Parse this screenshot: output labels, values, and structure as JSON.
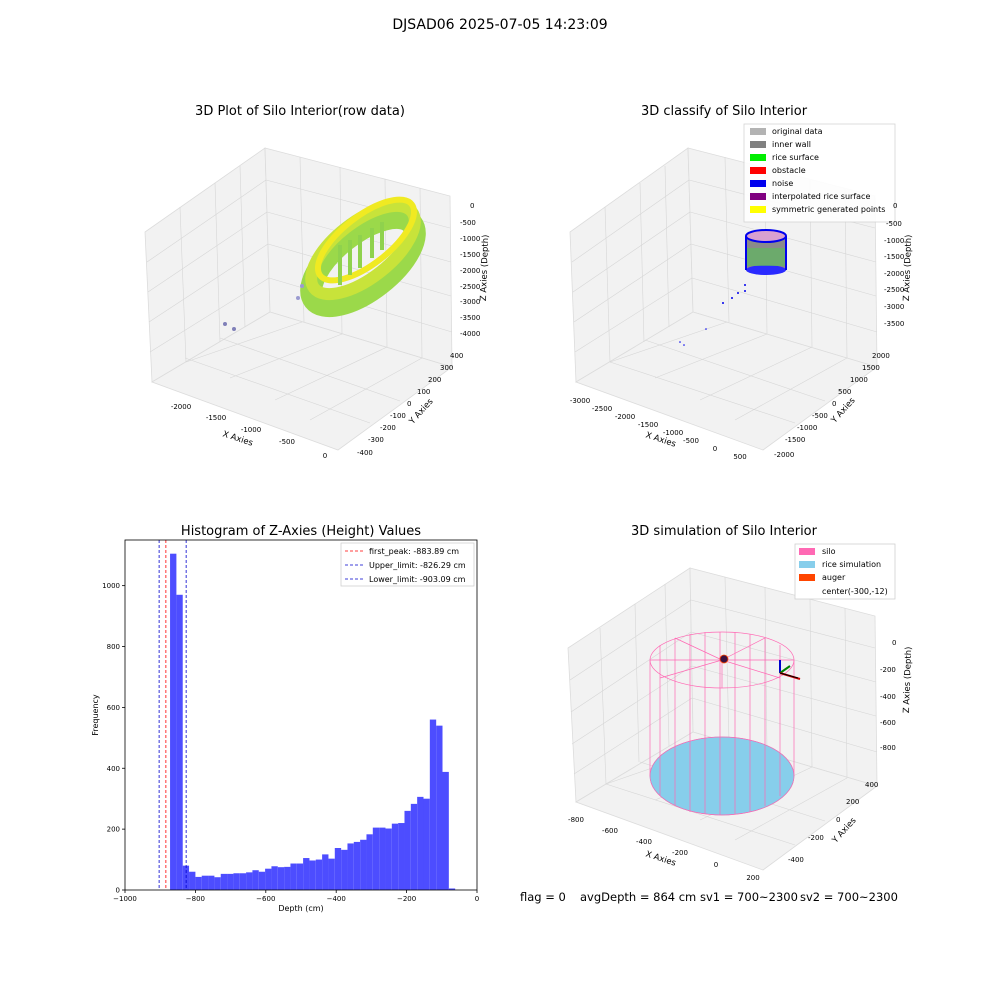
{
  "suptitle": "DJSAD06 2025-07-05 14:23:09",
  "panels": {
    "raw": {
      "title": "3D Plot of Silo Interior(row data)",
      "xlabel": "X Axies",
      "ylabel": "Y Axies",
      "zlabel": "Z Axies (Depth)",
      "xticks": [
        "-2000",
        "-1500",
        "-1000",
        "-500",
        "0"
      ],
      "yticks": [
        "400",
        "300",
        "200",
        "100",
        "0",
        "-100",
        "-200",
        "-300",
        "-400"
      ],
      "zticks": [
        "0",
        "-500",
        "-1000",
        "-1500",
        "-2000",
        "-2500",
        "-3000",
        "-3500",
        "-4000"
      ]
    },
    "classify": {
      "title": "3D classify of Silo Interior",
      "xlabel": "X Axies",
      "ylabel": "Y Axies",
      "zlabel": "Z Axies (Depth)",
      "xticks": [
        "-3000",
        "-2500",
        "-2000",
        "-1500",
        "-1000",
        "-500",
        "0",
        "500"
      ],
      "yticks": [
        "2000",
        "1500",
        "1000",
        "500",
        "0",
        "-500",
        "-1000",
        "-1500",
        "-2000"
      ],
      "zticks": [
        "0",
        "-500",
        "-1000",
        "-1500",
        "-2000",
        "-2500",
        "-3000",
        "-3500"
      ],
      "legend": [
        {
          "label": "original data",
          "color": "#b3b3b3"
        },
        {
          "label": "inner wall",
          "color": "#808080"
        },
        {
          "label": "rice surface",
          "color": "#00ee00"
        },
        {
          "label": "obstacle",
          "color": "#ff0000"
        },
        {
          "label": "noise",
          "color": "#0000ee"
        },
        {
          "label": "interpolated rice surface",
          "color": "#800080"
        },
        {
          "label": "symmetric generated points",
          "color": "#ffff00"
        }
      ]
    },
    "simulation": {
      "title": "3D simulation of Silo Interior",
      "xlabel": "X Axies",
      "ylabel": "Y Axies",
      "zlabel": "Z Axies (Depth)",
      "xticks": [
        "-800",
        "-600",
        "-400",
        "-200",
        "0",
        "200"
      ],
      "yticks": [
        "400",
        "200",
        "0",
        "-200",
        "-400"
      ],
      "zticks": [
        "0",
        "-200",
        "-400",
        "-600",
        "-800"
      ],
      "legend": [
        {
          "label": "silo",
          "color": "#ff69b4"
        },
        {
          "label": "rice simulation",
          "color": "#87ceeb"
        },
        {
          "label": "auger",
          "color": "#ff4500"
        },
        {
          "label": "center(-300,-12)",
          "color": ""
        }
      ]
    }
  },
  "status": {
    "flag": "flag = 0",
    "avg": "avgDepth = 864 cm",
    "sv1": "sv1 = 700~2300",
    "sv2": "sv2 = 700~2300"
  },
  "chart_data": [
    {
      "type": "bar",
      "title": "Histogram of Z-Axies (Height) Values",
      "xlabel": "Depth (cm)",
      "ylabel": "Frequency",
      "xlim": [
        -1000,
        0
      ],
      "ylim": [
        0,
        1150
      ],
      "xticks": [
        -1000,
        -800,
        -600,
        -400,
        -200,
        0
      ],
      "yticks": [
        0,
        200,
        400,
        600,
        800,
        1000
      ],
      "bar_color": "#4d4dff",
      "bins_start": -890,
      "bin_width": 18,
      "values": [
        0,
        1105,
        970,
        80,
        60,
        43,
        47,
        47,
        42,
        53,
        53,
        55,
        55,
        58,
        65,
        60,
        70,
        78,
        75,
        76,
        87,
        87,
        105,
        97,
        100,
        117,
        103,
        138,
        132,
        153,
        158,
        165,
        183,
        205,
        205,
        202,
        218,
        220,
        260,
        283,
        306,
        300,
        560,
        540,
        388,
        5
      ],
      "vlines": [
        {
          "label": "first_peak: -883.89 cm",
          "x": -883.89,
          "color": "#ff0000"
        },
        {
          "label": "Upper_limit: -826.29 cm",
          "x": -826.29,
          "color": "#0000cc"
        },
        {
          "label": "Lower_limit: -903.09 cm",
          "x": -903.09,
          "color": "#0000cc"
        }
      ],
      "legend_position": "upper right"
    }
  ]
}
